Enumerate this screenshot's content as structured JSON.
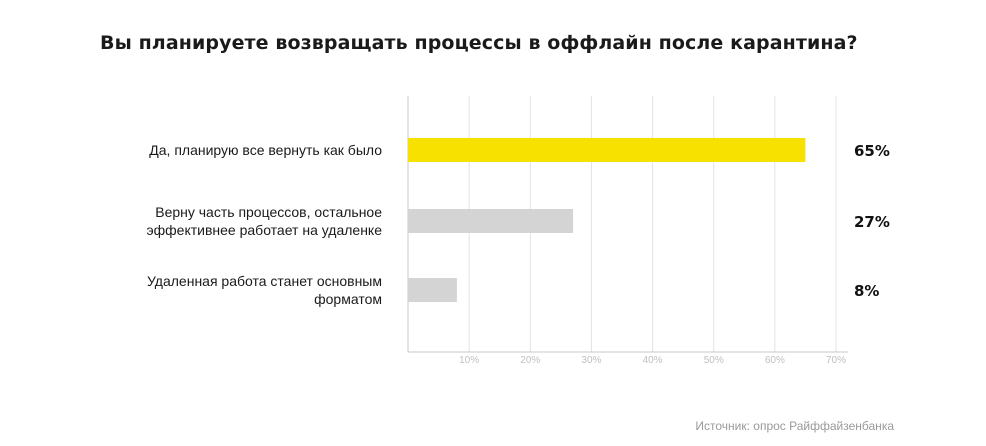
{
  "title": "Вы планируете возвращать процессы в оффлайн после карантина?",
  "source": "Источник: опрос Райффайзенбанка",
  "colors": {
    "highlight": "#f6e100",
    "neutral": "#d4d4d4",
    "grid": "#e3e3e3",
    "axis": "#c9c9c9",
    "tick_text": "#c0c0c0"
  },
  "chart_data": {
    "type": "bar",
    "orientation": "horizontal",
    "title": "Вы планируете возвращать процессы в оффлайн после карантина?",
    "categories": [
      [
        "Да, планирую все вернуть как было"
      ],
      [
        "Верну часть процессов, остальное",
        "эффективнее работает на удаленке"
      ],
      [
        "Удаленная работа станет основным",
        "форматом"
      ]
    ],
    "values": [
      65,
      27,
      8
    ],
    "value_labels": [
      "65%",
      "27%",
      "8%"
    ],
    "xlim": [
      0,
      70
    ],
    "xticks": [
      10,
      20,
      30,
      40,
      50,
      60,
      70
    ],
    "xtick_labels": [
      "10%",
      "20%",
      "30%",
      "40%",
      "50%",
      "60%",
      "70%"
    ],
    "grid": true,
    "legend": "none",
    "highlight_index": 0
  }
}
